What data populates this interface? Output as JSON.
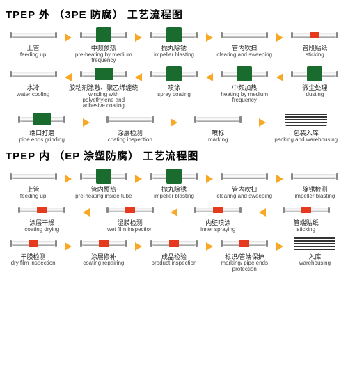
{
  "colors": {
    "arrow": "#f9a825",
    "green": "#1a6b2e",
    "red": "#e63a1e",
    "text": "#222"
  },
  "section1": {
    "title": "TPEP 外 （3PE 防腐） 工艺流程图",
    "rows": [
      [
        {
          "cn": "上管",
          "en": "feeding up",
          "ic": "pipe"
        },
        {
          "cn": "中频预热",
          "en": "pre-heating by medium frequency",
          "ic": "gbox"
        },
        {
          "cn": "抛丸除锈",
          "en": "impeller blasting",
          "ic": "gbox"
        },
        {
          "cn": "管内吹扫",
          "en": "clearing and sweeping",
          "ic": "pipe"
        },
        {
          "cn": "管段贴纸",
          "en": "sticking",
          "ic": "rband"
        }
      ],
      [
        {
          "cn": "水冷",
          "en": "water cooling",
          "ic": "pipe"
        },
        {
          "cn": "胶粘剂涂敷、聚乙烯缠绕",
          "en": "winding with polyethylene and adhesive coating",
          "ic": "gbox2"
        },
        {
          "cn": "喷涂",
          "en": "spray coating",
          "ic": "gbox"
        },
        {
          "cn": "中频加热",
          "en": "heating by medium frequency",
          "ic": "gbox"
        },
        {
          "cn": "微尘处理",
          "en": "dusting",
          "ic": "gbox"
        }
      ],
      [
        {
          "cn": "端口打磨",
          "en": "pipe ends grinding",
          "ic": "gbox2"
        },
        {
          "cn": "涂层检测",
          "en": "coating inspection",
          "ic": "pipe"
        },
        {
          "cn": "喷标",
          "en": "marking",
          "ic": "pipe"
        },
        {
          "cn": "包装入库",
          "en": "packing and warehousing",
          "ic": "stack"
        }
      ]
    ]
  },
  "section2": {
    "title": "TPEP 内 （EP 涂塑防腐） 工艺流程图",
    "rows": [
      [
        {
          "cn": "上管",
          "en": "feeding up",
          "ic": "pipe"
        },
        {
          "cn": "管内预热",
          "en": "pre-heating inside tube",
          "ic": "gbox"
        },
        {
          "cn": "抛丸除锈",
          "en": "impeller blasting",
          "ic": "gbox"
        },
        {
          "cn": "管内吹扫",
          "en": "clearing and sweeping",
          "ic": "pipe"
        },
        {
          "cn": "除锈检测",
          "en": "impeller blasting",
          "ic": "pipe"
        }
      ],
      [
        {
          "cn": "涂层干燥",
          "en": "coating drying",
          "ic": "rband"
        },
        {
          "cn": "湿膜检测",
          "en": "wet film inspection",
          "ic": "rband"
        },
        {
          "cn": "内壁喷涂",
          "en": "inner spraying",
          "ic": "rband"
        },
        {
          "cn": "管端贴纸",
          "en": "sticking",
          "ic": "rband"
        }
      ],
      [
        {
          "cn": "干膜检测",
          "en": "dry film inspection",
          "ic": "rband"
        },
        {
          "cn": "涂层修补",
          "en": "coating repairing",
          "ic": "rband"
        },
        {
          "cn": "成品检验",
          "en": "product inspection",
          "ic": "rband"
        },
        {
          "cn": "标识/管端保护",
          "en": "marking/ pipe ends protection",
          "ic": "rband"
        },
        {
          "cn": "入库",
          "en": "warehousing",
          "ic": "stack"
        }
      ]
    ]
  }
}
